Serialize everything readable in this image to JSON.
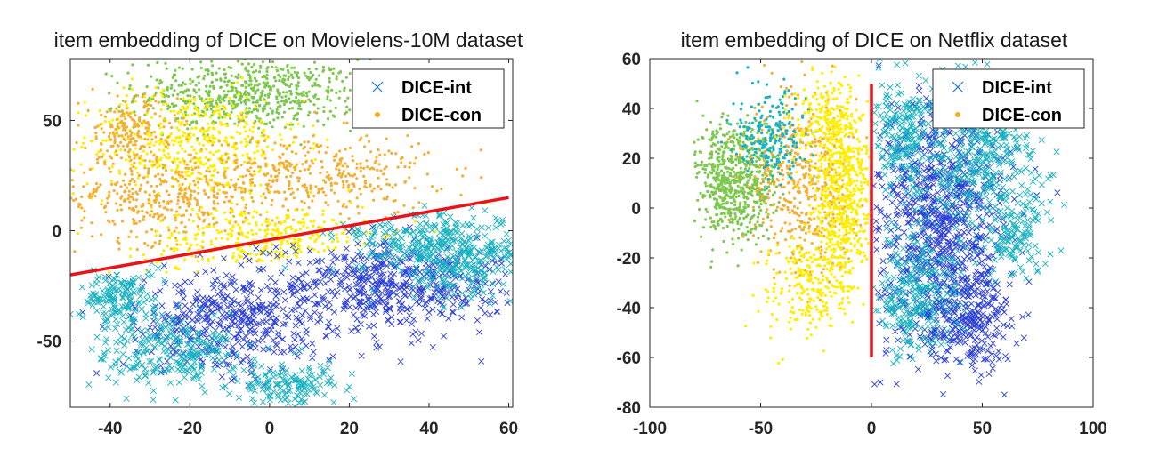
{
  "chart_data": [
    {
      "type": "scatter",
      "title": "item embedding of DICE on Movielens-10M dataset",
      "xlim": [
        -50,
        61
      ],
      "ylim": [
        -80,
        78
      ],
      "xticks": [
        -40,
        -20,
        0,
        20,
        40,
        60
      ],
      "yticks": [
        -50,
        0,
        50
      ],
      "xtick_labels": [
        "-40",
        "-20",
        "0",
        "20",
        "40",
        "60"
      ],
      "ytick_labels": [
        "-50",
        "0",
        "50"
      ],
      "grid": false,
      "legend_position": "top-right",
      "series": [
        {
          "name": "DICE-int",
          "marker": "x",
          "color": "#1f78c8"
        },
        {
          "name": "DICE-con",
          "marker": "dot",
          "color": "#edb120"
        }
      ],
      "separator_line": {
        "color": "#e8141b",
        "x": [
          -50,
          60
        ],
        "y": [
          -20,
          15
        ]
      }
    },
    {
      "type": "scatter",
      "title": "item embedding of DICE on Netflix dataset",
      "xlim": [
        -100,
        100
      ],
      "ylim": [
        -80,
        60
      ],
      "xticks": [
        -100,
        -50,
        0,
        50,
        100
      ],
      "yticks": [
        -80,
        -60,
        -40,
        -20,
        0,
        20,
        40,
        60
      ],
      "xtick_labels": [
        "-100",
        "-50",
        "0",
        "50",
        "100"
      ],
      "ytick_labels": [
        "-80",
        "-60",
        "-40",
        "-20",
        "0",
        "20",
        "40",
        "60"
      ],
      "grid": false,
      "legend_position": "top-right",
      "series": [
        {
          "name": "DICE-int",
          "marker": "x",
          "color": "#1f78c8"
        },
        {
          "name": "DICE-con",
          "marker": "dot",
          "color": "#edb120"
        }
      ],
      "separator_line": {
        "color": "#e8141b",
        "x": [
          0,
          0
        ],
        "y": [
          -60,
          50
        ]
      }
    }
  ],
  "colors": {
    "int_dark": "#2b3fd6",
    "int_light": "#19b2c0",
    "con_yellow": "#ffee00",
    "con_orange": "#f2b035",
    "con_green": "#7ec850"
  }
}
